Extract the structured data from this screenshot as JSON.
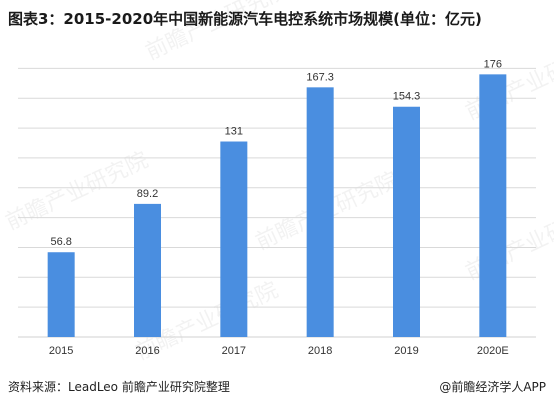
{
  "chart_data": {
    "type": "bar",
    "title": "图表3：2015-2020年中国新能源汽车电控系统市场规模(单位：亿元)",
    "categories": [
      "2015",
      "2016",
      "2017",
      "2018",
      "2019",
      "2020E"
    ],
    "values": [
      56.8,
      89.2,
      131,
      167.3,
      154.3,
      176
    ],
    "value_labels": [
      "56.8",
      "89.2",
      "131",
      "167.3",
      "154.3",
      "176"
    ],
    "ylim": [
      0,
      195
    ],
    "grid": true,
    "bar_color": "#4a8ee0",
    "grid_color": "#d9d9d9"
  },
  "footer": {
    "source": "资料来源：LeadLeo 前瞻产业研究院整理",
    "credit": "@前瞻经济学人APP"
  },
  "watermark": "前瞻产业研究院"
}
